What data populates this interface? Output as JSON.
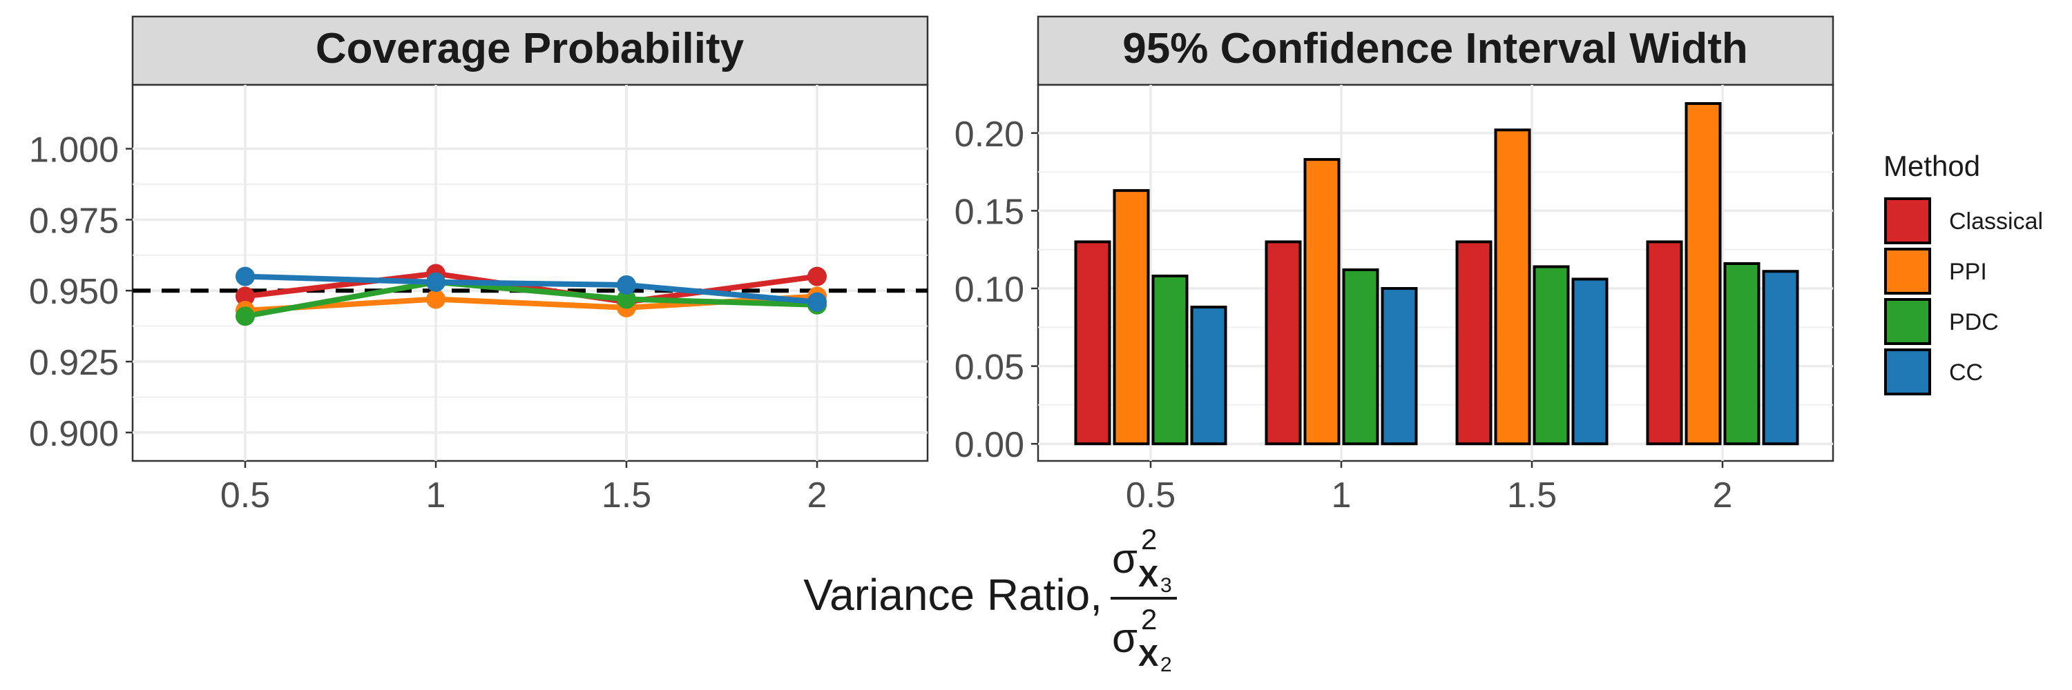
{
  "chart_data": [
    {
      "type": "line",
      "title": "Coverage Probability",
      "categories": [
        "0.5",
        "1",
        "1.5",
        "2"
      ],
      "ylim": [
        0.89,
        1.0225
      ],
      "yticks": [
        "1.000",
        "0.975",
        "0.950",
        "0.925",
        "0.900"
      ],
      "ytick_values": [
        1.0,
        0.975,
        0.95,
        0.925,
        0.9
      ],
      "reference_line": 0.95,
      "series": [
        {
          "name": "Classical",
          "color": "#d62728",
          "values": [
            0.948,
            0.956,
            0.946,
            0.955
          ]
        },
        {
          "name": "PPI",
          "color": "#ff7f0e",
          "values": [
            0.943,
            0.947,
            0.944,
            0.948
          ]
        },
        {
          "name": "PDC",
          "color": "#2ca02c",
          "values": [
            0.941,
            0.953,
            0.947,
            0.945
          ]
        },
        {
          "name": "CC",
          "color": "#1f77b4",
          "values": [
            0.955,
            0.953,
            0.952,
            0.946
          ]
        }
      ]
    },
    {
      "type": "bar",
      "title": "95% Confidence Interval Width",
      "categories": [
        "0.5",
        "1",
        "1.5",
        "2"
      ],
      "ylim": [
        -0.011,
        0.231
      ],
      "yticks": [
        "0.20",
        "0.15",
        "0.10",
        "0.05",
        "0.00"
      ],
      "ytick_values": [
        0.2,
        0.15,
        0.1,
        0.05,
        0.0
      ],
      "series": [
        {
          "name": "Classical",
          "color": "#d62728",
          "values": [
            0.13,
            0.13,
            0.13,
            0.13
          ]
        },
        {
          "name": "PPI",
          "color": "#ff7f0e",
          "values": [
            0.163,
            0.183,
            0.202,
            0.219
          ]
        },
        {
          "name": "PDC",
          "color": "#2ca02c",
          "values": [
            0.108,
            0.112,
            0.114,
            0.116
          ]
        },
        {
          "name": "CC",
          "color": "#1f77b4",
          "values": [
            0.088,
            0.1,
            0.106,
            0.111
          ]
        }
      ]
    }
  ],
  "xlabel": {
    "prefix": "Variance Ratio,",
    "sigma": "σ",
    "power": "2",
    "x": "X",
    "numerator_subscript": "3",
    "denominator_subscript": "2"
  },
  "legend": {
    "title": "Method",
    "entries": [
      {
        "label": "Classical",
        "color": "#d62728"
      },
      {
        "label": "PPI",
        "color": "#ff7f0e"
      },
      {
        "label": "PDC",
        "color": "#2ca02c"
      },
      {
        "label": "CC",
        "color": "#1f77b4"
      }
    ]
  }
}
